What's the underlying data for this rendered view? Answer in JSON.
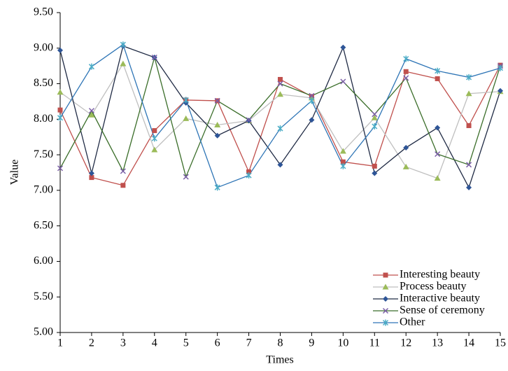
{
  "chart_data": {
    "type": "line",
    "x_label": "Times",
    "y_label": "Value",
    "x": [
      1,
      2,
      3,
      4,
      5,
      6,
      7,
      8,
      9,
      10,
      11,
      12,
      13,
      14,
      15
    ],
    "xlim": [
      1,
      15
    ],
    "xticks": [
      1,
      2,
      3,
      4,
      5,
      6,
      7,
      8,
      9,
      10,
      11,
      12,
      13,
      14,
      15
    ],
    "ylim": [
      5,
      9.5
    ],
    "yticks": [
      {
        "value": 5,
        "label": "5.00"
      },
      {
        "value": 5.5,
        "label": "5.50"
      },
      {
        "value": 6,
        "label": "6.00"
      },
      {
        "value": 6.5,
        "label": "6.50"
      },
      {
        "value": 7,
        "label": "7.00"
      },
      {
        "value": 7.5,
        "label": "7.50"
      },
      {
        "value": 8,
        "label": "8.00"
      },
      {
        "value": 8.5,
        "label": "8.50"
      },
      {
        "value": 9,
        "label": "9.00"
      },
      {
        "value": 9.5,
        "label": "9.50"
      }
    ],
    "grid": false,
    "legend": "bottom-right",
    "series": [
      {
        "name": "Interesting beauty",
        "color": "#c0504d",
        "marker": "square",
        "marker_color": "#c0504d",
        "values": [
          8.13,
          7.18,
          7.07,
          7.84,
          8.27,
          8.26,
          7.26,
          8.56,
          8.32,
          7.4,
          7.34,
          8.67,
          8.57,
          7.91,
          8.76
        ]
      },
      {
        "name": "Process beauty",
        "color": "#bfbfbf",
        "marker": "triangle",
        "marker_color": "#9bbb59",
        "values": [
          8.38,
          8.06,
          8.78,
          7.57,
          8.01,
          7.92,
          7.98,
          8.35,
          8.3,
          7.55,
          8.02,
          7.33,
          7.17,
          8.36,
          8.39
        ]
      },
      {
        "name": "Interactive beauty",
        "color": "#1f2a44",
        "marker": "diamond",
        "marker_color": "#2e5597",
        "values": [
          8.97,
          7.24,
          9.03,
          8.87,
          8.23,
          7.77,
          7.98,
          7.36,
          7.99,
          9.01,
          7.24,
          7.6,
          7.88,
          7.04,
          8.4
        ]
      },
      {
        "name": "Sense of ceremony",
        "color": "#3b6e2a",
        "marker": "x",
        "marker_color": "#7b5ea7",
        "values": [
          7.31,
          8.12,
          7.27,
          8.87,
          7.19,
          8.26,
          7.99,
          8.5,
          8.33,
          8.53,
          8.07,
          8.58,
          7.51,
          7.36,
          8.75
        ]
      },
      {
        "name": "Other",
        "color": "#2e75b6",
        "marker": "asterisk",
        "marker_color": "#4bacc6",
        "values": [
          8.02,
          8.74,
          9.05,
          7.73,
          8.27,
          7.04,
          7.21,
          7.87,
          8.26,
          7.34,
          7.9,
          8.85,
          8.68,
          8.59,
          8.72
        ]
      }
    ]
  }
}
